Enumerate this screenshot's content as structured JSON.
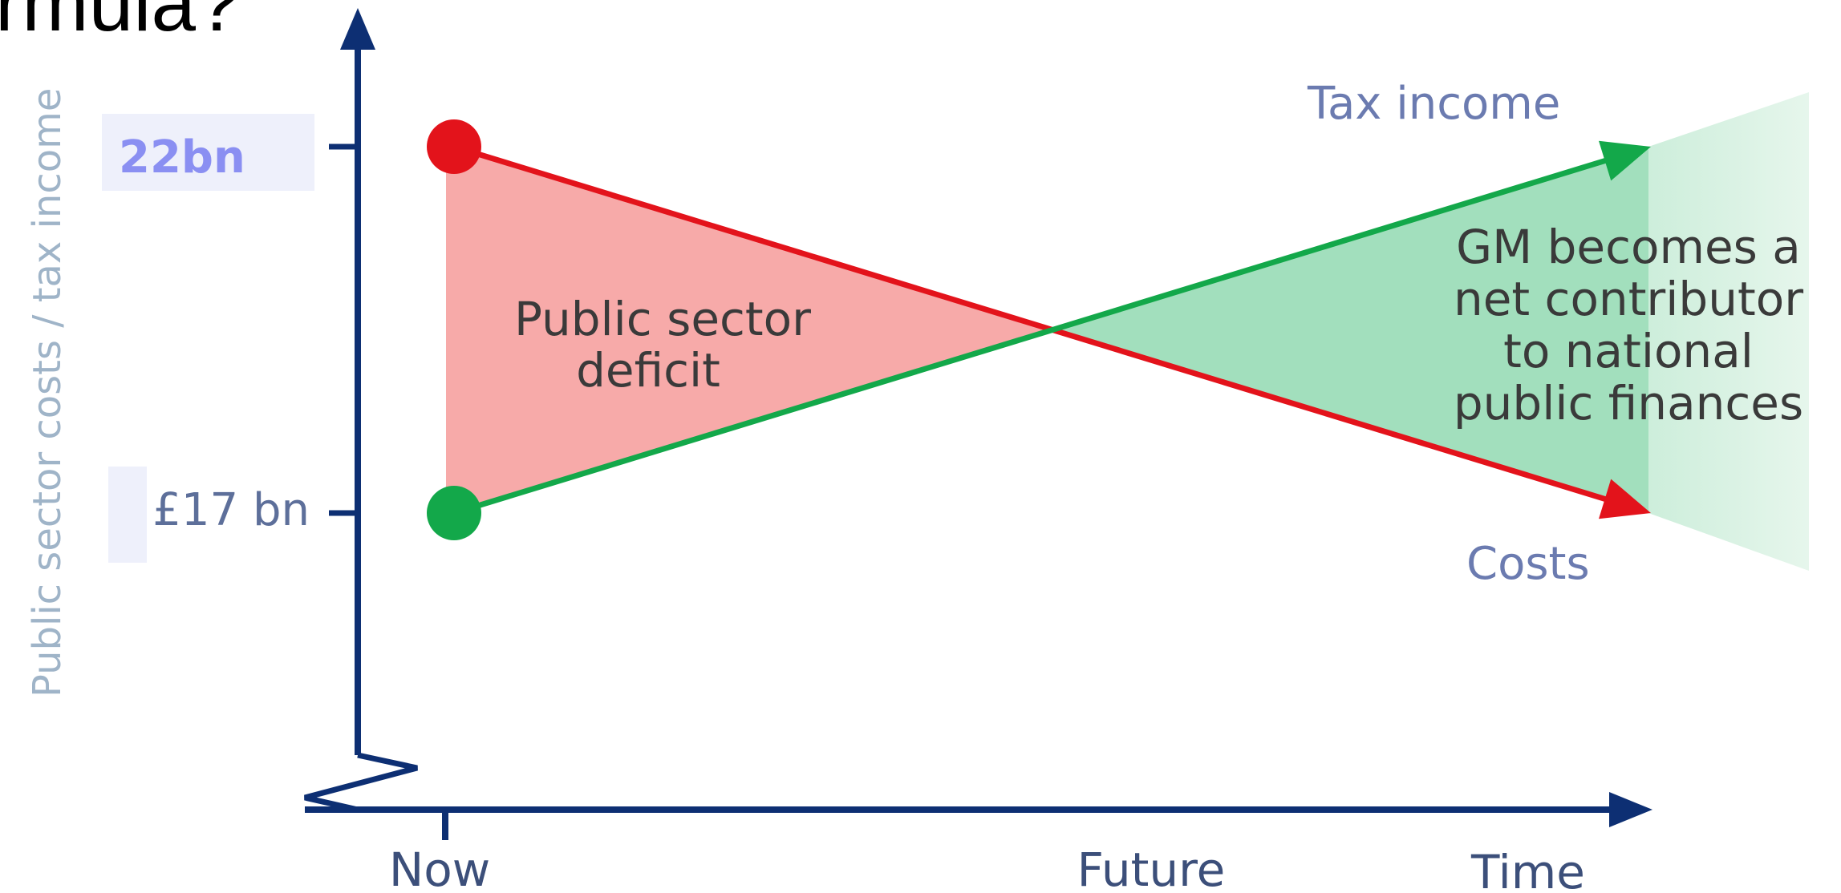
{
  "title_fragment": "rmula?",
  "colors": {
    "axis": "#0d2f73",
    "costs": "#e3131b",
    "tax_income": "#13a84a",
    "deficit_fill": "#f7aaa9",
    "surplus_fill": "#a2dfbd",
    "surplus_fade": "#d8f1e3",
    "axis_label": "#9fb4c8",
    "badge_bg": "#eef0fb",
    "badge_text": "#8a8ff2"
  },
  "chart_data": {
    "type": "line",
    "ylabel": "Public sector costs / tax income",
    "xlabel": "",
    "x_ticks": [
      "Now",
      "Future",
      "Time"
    ],
    "y_ticks": [
      {
        "label": "22bn",
        "value": 22
      },
      {
        "label": "£17 bn",
        "value": 17
      }
    ],
    "ylim": [
      12,
      26
    ],
    "series": [
      {
        "name": "Costs",
        "values": [
          22,
          17
        ],
        "color": "#e3131b"
      },
      {
        "name": "Tax income",
        "values": [
          17,
          22
        ],
        "color": "#13a84a"
      }
    ],
    "annotations": {
      "deficit": [
        "Public sector",
        "deficit"
      ],
      "surplus": [
        "GM becomes a",
        "net contributor",
        "to national",
        "public finances"
      ]
    }
  }
}
